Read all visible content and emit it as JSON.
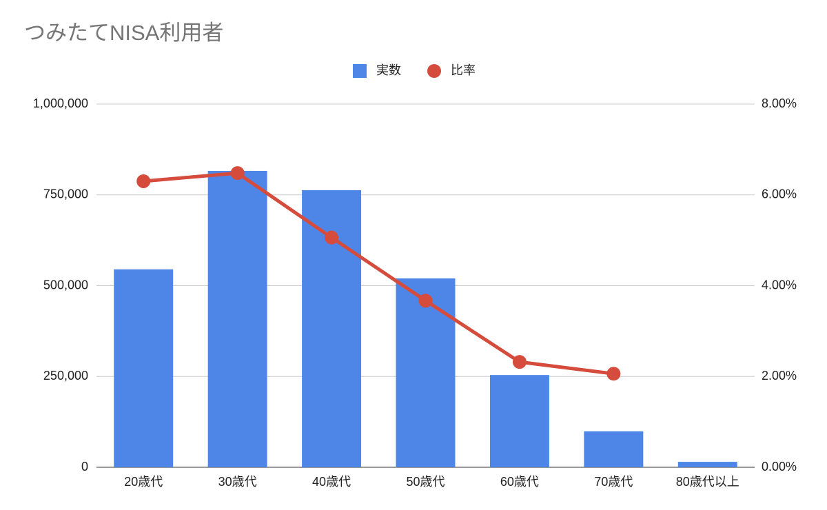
{
  "chart_data": {
    "type": "bar_line",
    "title": "つみたてNISA利用者",
    "categories": [
      "20歳代",
      "30歳代",
      "40歳代",
      "50歳代",
      "60歳代",
      "70歳代",
      "80歳代以上"
    ],
    "series": [
      {
        "name": "実数",
        "type": "bar",
        "color": "#4e86e8",
        "values": [
          545000,
          816000,
          763000,
          520000,
          254000,
          99000,
          15000
        ]
      },
      {
        "name": "比率",
        "type": "line",
        "axis": "y2",
        "color": "#d54b3c",
        "values": [
          6.3,
          6.48,
          5.06,
          3.67,
          2.32,
          2.06,
          null
        ]
      }
    ],
    "ylim": [
      0,
      1000000
    ],
    "yticks": [
      0,
      {
        "value": 250000,
        "label": "250,000"
      },
      {
        "value": 500000,
        "label": "500,000"
      },
      {
        "value": 750000,
        "label": "750,000"
      },
      {
        "value": 1000000,
        "label": "1,000,000"
      }
    ],
    "y2lim": [
      0,
      8
    ],
    "y2ticks": [
      {
        "value": 0,
        "label": "0.00%"
      },
      {
        "value": 2,
        "label": "2.00%"
      },
      {
        "value": 4,
        "label": "4.00%"
      },
      {
        "value": 6,
        "label": "6.00%"
      },
      {
        "value": 8,
        "label": "8.00%"
      }
    ],
    "grid": true,
    "legend": "top"
  }
}
